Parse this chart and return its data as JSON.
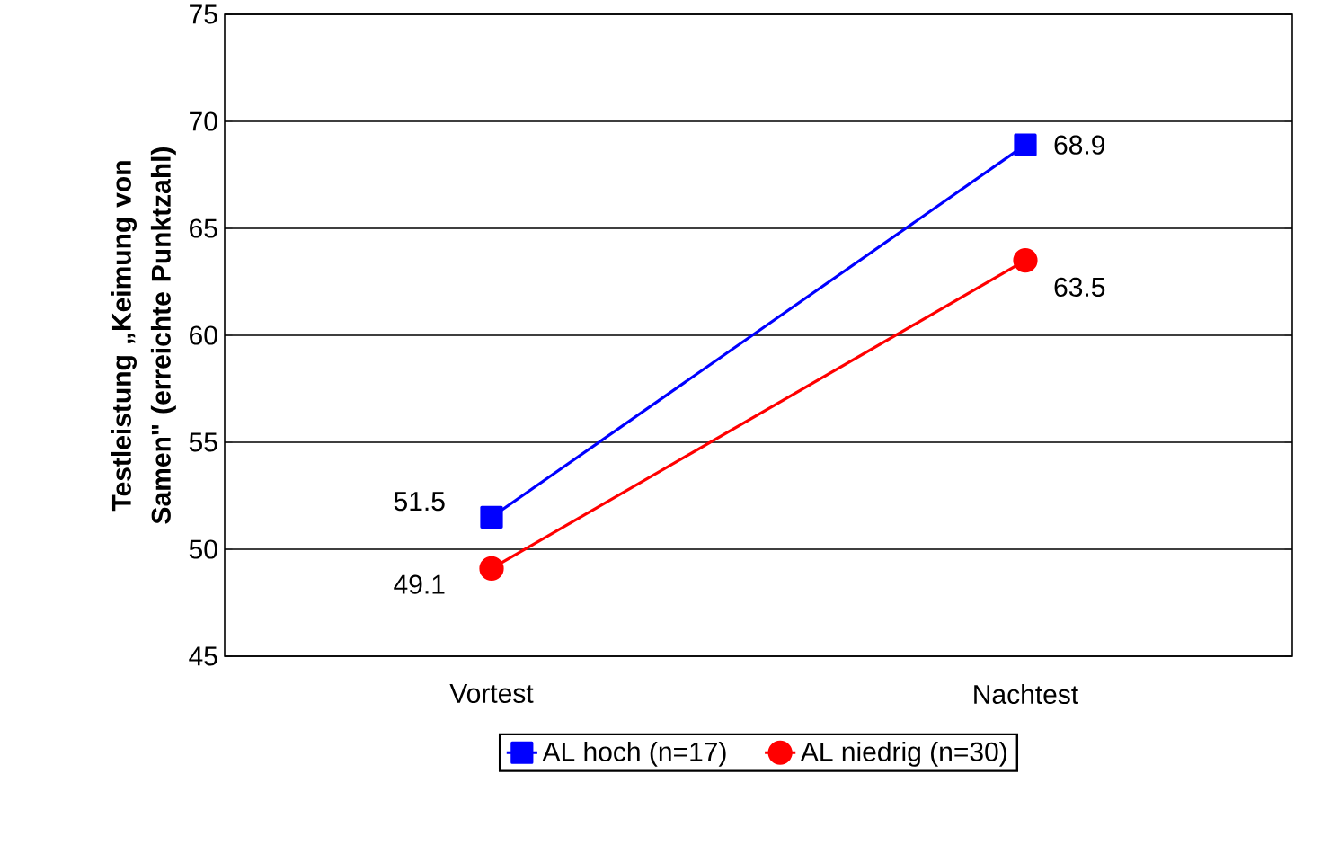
{
  "chart_data": {
    "type": "line",
    "ylabel": "Testleistung „Keimung von Samen\" (erreichte Punktzahl)",
    "categories": [
      "Vortest",
      "Nachtest"
    ],
    "series": [
      {
        "name": "AL hoch (n=17)",
        "color": "#0000ff",
        "marker": "square",
        "values": [
          51.5,
          68.9
        ]
      },
      {
        "name": "AL niedrig (n=30)",
        "color": "#ff0000",
        "marker": "circle",
        "values": [
          49.1,
          63.5
        ]
      }
    ],
    "ylim": [
      45,
      75
    ],
    "yticks": [
      45,
      50,
      55,
      60,
      65,
      70,
      75
    ],
    "grid": "y",
    "legend": "bottom",
    "data_labels": true,
    "line_style": "solid"
  }
}
